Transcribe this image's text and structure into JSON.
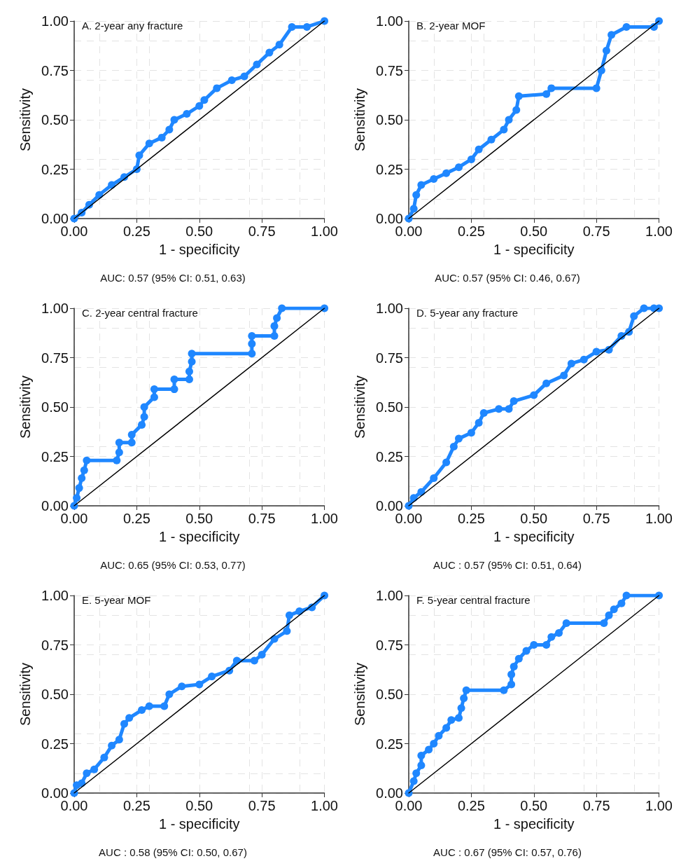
{
  "chart_data": [
    {
      "type": "line",
      "title": "A. 2-year any fracture",
      "xlabel": "1 - specificity",
      "ylabel": "Sensitivity",
      "annotations": [
        "AUC: 0.57 (95% CI: 0.51, 0.63)"
      ],
      "xlim": [
        0,
        1
      ],
      "ylim": [
        0,
        1
      ],
      "xticks": [
        {
          "value": 0,
          "label": "0.00"
        },
        {
          "value": 0.25,
          "label": "0.25"
        },
        {
          "value": 0.5,
          "label": "0.50"
        },
        {
          "value": 0.75,
          "label": "0.75"
        },
        {
          "value": 1,
          "label": "1.00"
        }
      ],
      "yticks": [
        {
          "value": 0,
          "label": "0.00"
        },
        {
          "value": 0.25,
          "label": "0.25"
        },
        {
          "value": 0.5,
          "label": "0.50"
        },
        {
          "value": 0.75,
          "label": "0.75"
        },
        {
          "value": 1,
          "label": "1.00"
        }
      ],
      "grid": true,
      "series": [
        {
          "color": "#1f87ff",
          "marker": "circle",
          "x": [
            0,
            0.03,
            0.06,
            0.1,
            0.15,
            0.2,
            0.25,
            0.26,
            0.3,
            0.35,
            0.38,
            0.4,
            0.45,
            0.5,
            0.52,
            0.57,
            0.63,
            0.68,
            0.73,
            0.78,
            0.82,
            0.87,
            0.93,
            1
          ],
          "values": [
            0,
            0.03,
            0.07,
            0.12,
            0.17,
            0.21,
            0.25,
            0.32,
            0.38,
            0.41,
            0.45,
            0.5,
            0.53,
            0.57,
            0.6,
            0.66,
            0.7,
            0.72,
            0.78,
            0.84,
            0.88,
            0.97,
            0.97,
            1
          ]
        },
        {
          "color": "#000000",
          "marker": "none",
          "x": [
            0,
            1
          ],
          "values": [
            0,
            1
          ]
        }
      ]
    },
    {
      "type": "line",
      "title": "B. 2-year MOF",
      "xlabel": "1 - specificity",
      "ylabel": "Sensitivity",
      "annotations": [
        "AUC: 0.57 (95% CI: 0.46, 0.67)"
      ],
      "xlim": [
        0,
        1
      ],
      "ylim": [
        0,
        1
      ],
      "xticks": [
        {
          "value": 0,
          "label": "0.00"
        },
        {
          "value": 0.25,
          "label": "0.25"
        },
        {
          "value": 0.5,
          "label": "0.50"
        },
        {
          "value": 0.75,
          "label": "0.75"
        },
        {
          "value": 1,
          "label": "1.00"
        }
      ],
      "yticks": [
        {
          "value": 0,
          "label": "0.00"
        },
        {
          "value": 0.25,
          "label": "0.25"
        },
        {
          "value": 0.5,
          "label": "0.50"
        },
        {
          "value": 0.75,
          "label": "0.75"
        },
        {
          "value": 1,
          "label": "1.00"
        }
      ],
      "grid": true,
      "series": [
        {
          "color": "#1f87ff",
          "marker": "circle",
          "x": [
            0,
            0.02,
            0.03,
            0.05,
            0.1,
            0.15,
            0.2,
            0.25,
            0.28,
            0.33,
            0.38,
            0.4,
            0.43,
            0.44,
            0.55,
            0.57,
            0.75,
            0.77,
            0.79,
            0.81,
            0.87,
            0.98,
            1
          ],
          "values": [
            0,
            0.05,
            0.12,
            0.17,
            0.2,
            0.23,
            0.26,
            0.3,
            0.35,
            0.4,
            0.45,
            0.5,
            0.55,
            0.62,
            0.63,
            0.66,
            0.66,
            0.75,
            0.85,
            0.93,
            0.97,
            0.97,
            1
          ]
        },
        {
          "color": "#000000",
          "marker": "none",
          "x": [
            0,
            1
          ],
          "values": [
            0,
            1
          ]
        }
      ]
    },
    {
      "type": "line",
      "title": "C. 2-year central fracture",
      "xlabel": "1 - specificity",
      "ylabel": "Sensitivity",
      "annotations": [
        "AUC: 0.65 (95% CI: 0.53, 0.77)"
      ],
      "xlim": [
        0,
        1
      ],
      "ylim": [
        0,
        1
      ],
      "xticks": [
        {
          "value": 0,
          "label": "0.00"
        },
        {
          "value": 0.25,
          "label": "0.25"
        },
        {
          "value": 0.5,
          "label": "0.50"
        },
        {
          "value": 0.75,
          "label": "0.75"
        },
        {
          "value": 1,
          "label": "1.00"
        }
      ],
      "yticks": [
        {
          "value": 0,
          "label": "0.00"
        },
        {
          "value": 0.25,
          "label": "0.25"
        },
        {
          "value": 0.5,
          "label": "0.50"
        },
        {
          "value": 0.75,
          "label": "0.75"
        },
        {
          "value": 1,
          "label": "1.00"
        }
      ],
      "grid": true,
      "series": [
        {
          "color": "#1f87ff",
          "marker": "circle",
          "x": [
            0,
            0.01,
            0.02,
            0.03,
            0.04,
            0.05,
            0.17,
            0.18,
            0.18,
            0.23,
            0.23,
            0.27,
            0.28,
            0.28,
            0.32,
            0.32,
            0.4,
            0.4,
            0.46,
            0.46,
            0.47,
            0.47,
            0.71,
            0.71,
            0.71,
            0.8,
            0.8,
            0.81,
            0.83,
            1
          ],
          "values": [
            0,
            0.04,
            0.09,
            0.14,
            0.18,
            0.23,
            0.23,
            0.27,
            0.32,
            0.32,
            0.36,
            0.41,
            0.45,
            0.5,
            0.55,
            0.59,
            0.59,
            0.64,
            0.64,
            0.68,
            0.73,
            0.77,
            0.77,
            0.82,
            0.86,
            0.86,
            0.91,
            0.95,
            1,
            1
          ]
        },
        {
          "color": "#000000",
          "marker": "none",
          "x": [
            0,
            1
          ],
          "values": [
            0,
            1
          ]
        }
      ]
    },
    {
      "type": "line",
      "title": "D. 5-year any fracture",
      "xlabel": "1 - specificity",
      "ylabel": "Sensitivity",
      "annotations": [
        "AUC : 0.57 (95% CI: 0.51, 0.64)"
      ],
      "xlim": [
        0,
        1
      ],
      "ylim": [
        0,
        1
      ],
      "xticks": [
        {
          "value": 0,
          "label": "0.00"
        },
        {
          "value": 0.25,
          "label": "0.25"
        },
        {
          "value": 0.5,
          "label": "0.50"
        },
        {
          "value": 0.75,
          "label": "0.75"
        },
        {
          "value": 1,
          "label": "1.00"
        }
      ],
      "yticks": [
        {
          "value": 0,
          "label": "0.00"
        },
        {
          "value": 0.25,
          "label": "0.25"
        },
        {
          "value": 0.5,
          "label": "0.50"
        },
        {
          "value": 0.75,
          "label": "0.75"
        },
        {
          "value": 1,
          "label": "1.00"
        }
      ],
      "grid": true,
      "series": [
        {
          "color": "#1f87ff",
          "marker": "circle",
          "x": [
            0,
            0.02,
            0.05,
            0.1,
            0.15,
            0.18,
            0.2,
            0.25,
            0.28,
            0.3,
            0.36,
            0.4,
            0.42,
            0.5,
            0.55,
            0.62,
            0.65,
            0.7,
            0.75,
            0.8,
            0.85,
            0.88,
            0.9,
            0.94,
            0.98,
            1
          ],
          "values": [
            0,
            0.04,
            0.07,
            0.14,
            0.22,
            0.3,
            0.34,
            0.37,
            0.42,
            0.47,
            0.49,
            0.49,
            0.53,
            0.56,
            0.62,
            0.66,
            0.72,
            0.74,
            0.78,
            0.79,
            0.86,
            0.88,
            0.96,
            1,
            1,
            1
          ]
        },
        {
          "color": "#000000",
          "marker": "none",
          "x": [
            0,
            1
          ],
          "values": [
            0,
            1
          ]
        }
      ]
    },
    {
      "type": "line",
      "title": "E. 5-year MOF",
      "xlabel": "1 - specificity",
      "ylabel": "Sensitivity",
      "annotations": [
        "AUC : 0.58 (95% CI: 0.50, 0.67)"
      ],
      "xlim": [
        0,
        1
      ],
      "ylim": [
        0,
        1
      ],
      "xticks": [
        {
          "value": 0,
          "label": "0.00"
        },
        {
          "value": 0.25,
          "label": "0.25"
        },
        {
          "value": 0.5,
          "label": "0.50"
        },
        {
          "value": 0.75,
          "label": "0.75"
        },
        {
          "value": 1,
          "label": "1.00"
        }
      ],
      "yticks": [
        {
          "value": 0,
          "label": "0.00"
        },
        {
          "value": 0.25,
          "label": "0.25"
        },
        {
          "value": 0.5,
          "label": "0.50"
        },
        {
          "value": 0.75,
          "label": "0.75"
        },
        {
          "value": 1,
          "label": "1.00"
        }
      ],
      "grid": true,
      "series": [
        {
          "color": "#1f87ff",
          "marker": "circle",
          "x": [
            0,
            0.01,
            0.03,
            0.05,
            0.08,
            0.12,
            0.15,
            0.18,
            0.2,
            0.22,
            0.27,
            0.3,
            0.36,
            0.38,
            0.43,
            0.5,
            0.55,
            0.62,
            0.65,
            0.72,
            0.75,
            0.8,
            0.85,
            0.86,
            0.9,
            0.95,
            1
          ],
          "values": [
            0,
            0.04,
            0.05,
            0.1,
            0.12,
            0.18,
            0.24,
            0.27,
            0.35,
            0.38,
            0.42,
            0.44,
            0.44,
            0.5,
            0.54,
            0.55,
            0.59,
            0.62,
            0.67,
            0.67,
            0.7,
            0.78,
            0.82,
            0.9,
            0.92,
            0.94,
            1
          ]
        },
        {
          "color": "#000000",
          "marker": "none",
          "x": [
            0,
            1
          ],
          "values": [
            0,
            1
          ]
        }
      ]
    },
    {
      "type": "line",
      "title": "F. 5-year central fracture",
      "xlabel": "1 - specificity",
      "ylabel": "Sensitivity",
      "annotations": [
        "AUC : 0.67 (95% CI: 0.57, 0.76)"
      ],
      "xlim": [
        0,
        1
      ],
      "ylim": [
        0,
        1
      ],
      "xticks": [
        {
          "value": 0,
          "label": "0.00"
        },
        {
          "value": 0.25,
          "label": "0.25"
        },
        {
          "value": 0.5,
          "label": "0.50"
        },
        {
          "value": 0.75,
          "label": "0.75"
        },
        {
          "value": 1,
          "label": "1.00"
        }
      ],
      "yticks": [
        {
          "value": 0,
          "label": "0.00"
        },
        {
          "value": 0.25,
          "label": "0.25"
        },
        {
          "value": 0.5,
          "label": "0.50"
        },
        {
          "value": 0.75,
          "label": "0.75"
        },
        {
          "value": 1,
          "label": "1.00"
        }
      ],
      "grid": true,
      "series": [
        {
          "color": "#1f87ff",
          "marker": "circle",
          "x": [
            0,
            0.02,
            0.03,
            0.05,
            0.05,
            0.08,
            0.1,
            0.12,
            0.15,
            0.17,
            0.2,
            0.21,
            0.22,
            0.23,
            0.38,
            0.41,
            0.41,
            0.42,
            0.44,
            0.47,
            0.5,
            0.55,
            0.57,
            0.6,
            0.63,
            0.78,
            0.8,
            0.82,
            0.85,
            0.87,
            1
          ],
          "values": [
            0,
            0.06,
            0.1,
            0.14,
            0.19,
            0.22,
            0.25,
            0.29,
            0.33,
            0.37,
            0.38,
            0.43,
            0.48,
            0.52,
            0.52,
            0.55,
            0.6,
            0.64,
            0.68,
            0.72,
            0.75,
            0.75,
            0.79,
            0.81,
            0.86,
            0.86,
            0.9,
            0.93,
            0.96,
            1,
            1
          ]
        },
        {
          "color": "#000000",
          "marker": "none",
          "x": [
            0,
            1
          ],
          "values": [
            0,
            1
          ]
        }
      ]
    }
  ]
}
